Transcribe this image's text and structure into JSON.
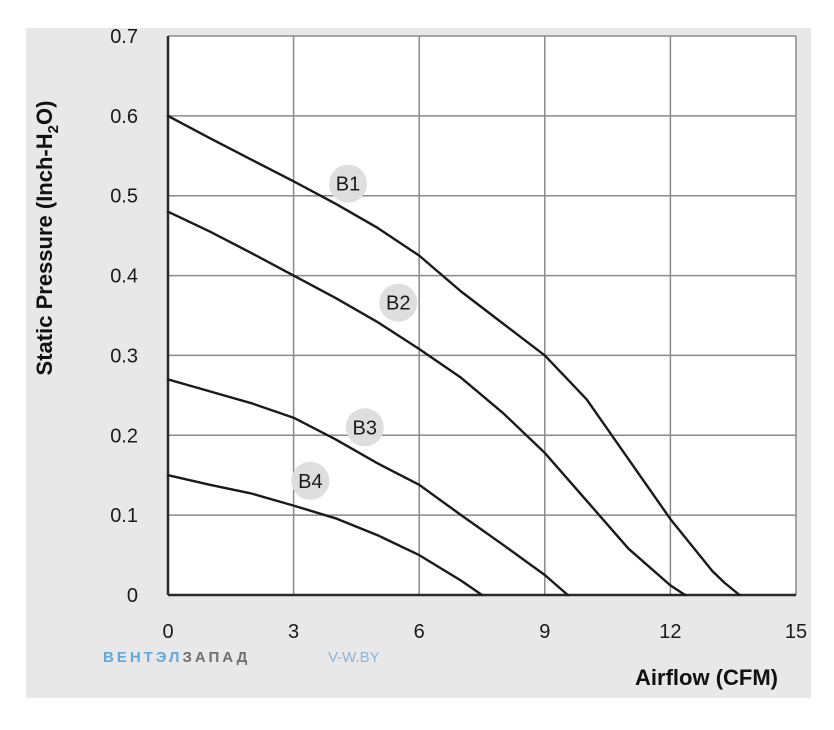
{
  "chart_data": {
    "type": "line",
    "title": "",
    "xlabel": "Airflow (CFM)",
    "ylabel_main": "Static Pressure (Inch-H",
    "ylabel_sub": "2",
    "ylabel_end": "O)",
    "xlim": [
      0,
      15
    ],
    "ylim": [
      0,
      0.7
    ],
    "x_ticks": [
      0,
      3,
      6,
      9,
      12,
      15
    ],
    "x_tick_labels": [
      "0",
      "3",
      "6",
      "9",
      "12",
      "15"
    ],
    "y_ticks": [
      0,
      0.1,
      0.2,
      0.3,
      0.4,
      0.5,
      0.6,
      0.7
    ],
    "y_tick_labels": [
      "0",
      "0.1",
      "0.2",
      "0.3",
      "0.4",
      "0.5",
      "0.6",
      "0.7"
    ],
    "grid": true,
    "series": [
      {
        "name": "B1",
        "label_at": [
          4.3,
          0.515
        ],
        "x": [
          0,
          1,
          2,
          3,
          4,
          5,
          6,
          7,
          8,
          9,
          10,
          11,
          12,
          13,
          13.3,
          13.65
        ],
        "y": [
          0.6,
          0.572,
          0.545,
          0.518,
          0.49,
          0.46,
          0.425,
          0.38,
          0.34,
          0.3,
          0.245,
          0.17,
          0.095,
          0.03,
          0.015,
          0
        ]
      },
      {
        "name": "B2",
        "label_at": [
          5.5,
          0.366
        ],
        "x": [
          0,
          1,
          2,
          3,
          4,
          5,
          6,
          7,
          8,
          9,
          10,
          11,
          12,
          12.35
        ],
        "y": [
          0.48,
          0.455,
          0.428,
          0.4,
          0.372,
          0.342,
          0.308,
          0.272,
          0.228,
          0.178,
          0.118,
          0.058,
          0.012,
          0
        ]
      },
      {
        "name": "B3",
        "label_at": [
          4.7,
          0.21
        ],
        "x": [
          0,
          1,
          2,
          3,
          4,
          5,
          6,
          7,
          8,
          9,
          9.55
        ],
        "y": [
          0.27,
          0.255,
          0.24,
          0.222,
          0.195,
          0.165,
          0.138,
          0.1,
          0.063,
          0.025,
          0
        ]
      },
      {
        "name": "B4",
        "label_at": [
          3.4,
          0.143
        ],
        "x": [
          0,
          1,
          2,
          3,
          4,
          5,
          6,
          7,
          7.5
        ],
        "y": [
          0.15,
          0.138,
          0.127,
          0.112,
          0.096,
          0.075,
          0.05,
          0.018,
          0
        ]
      }
    ]
  },
  "watermark": {
    "brand_part1": "ВЕНТЭЛ",
    "brand_part2": "ЗАПАД",
    "site": "V-W.BY",
    "color1": "#5fa9e0",
    "color2": "#6f6f6f"
  },
  "colors": {
    "frame_bg": "#e8e8e8",
    "plot_bg": "#ffffff",
    "grid": "#8a8a8a",
    "curve": "#1a1a1a",
    "label_bubble": "#dedede"
  }
}
